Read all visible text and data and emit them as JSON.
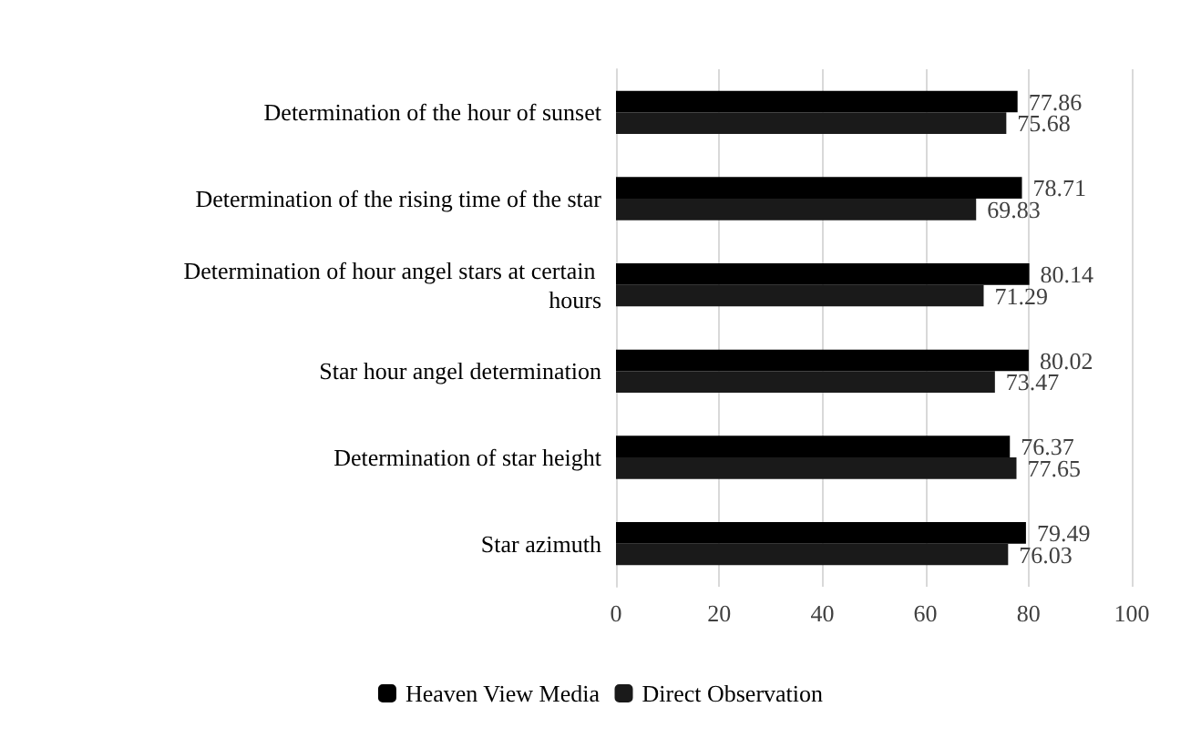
{
  "chart_data": {
    "type": "bar",
    "orientation": "horizontal",
    "categories": [
      "Determination of the hour of sunset",
      "Determination of the rising time of the star",
      "Determination of hour angel stars at certain hours",
      "Star hour angel determination",
      "Determination of star height",
      "Star azimuth"
    ],
    "series": [
      {
        "name": "Heaven View Media",
        "color": "#000000",
        "values": [
          77.86,
          78.71,
          80.14,
          80.02,
          76.37,
          79.49
        ]
      },
      {
        "name": "Direct Observation",
        "color": "#1a1a1a",
        "values": [
          75.68,
          69.83,
          71.29,
          73.47,
          77.65,
          76.03
        ]
      }
    ],
    "xlim": [
      0,
      100
    ],
    "xticks": [
      0,
      20,
      40,
      60,
      80,
      100
    ],
    "grid": "x",
    "legend": "bottom",
    "data_labels": true
  }
}
